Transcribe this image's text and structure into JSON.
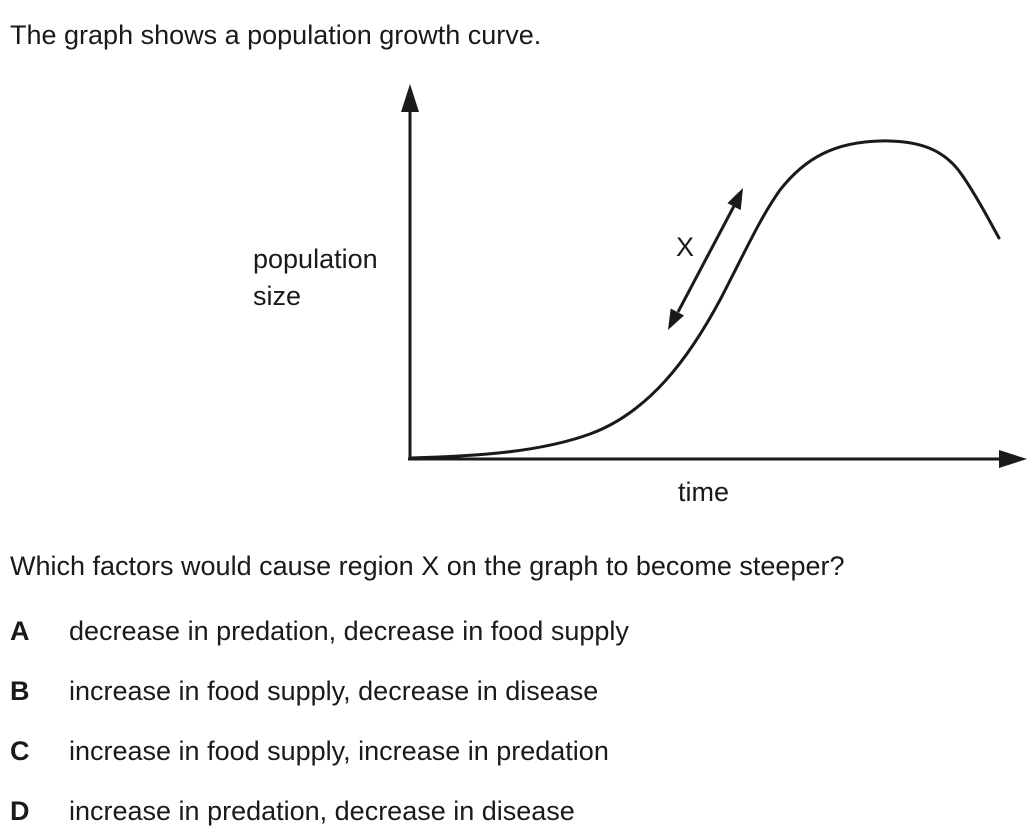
{
  "intro_text": "The graph shows a population growth curve.",
  "chart_data": {
    "type": "line",
    "title": "",
    "xlabel": "time",
    "ylabel_lines": [
      "population",
      "size"
    ],
    "region_label": "X",
    "axis_values_shown": false,
    "grid": false
  },
  "question": "Which factors would cause region X on the graph to become steeper?",
  "options": [
    {
      "letter": "A",
      "text": "decrease in predation, decrease in food supply"
    },
    {
      "letter": "B",
      "text": "increase in food supply, decrease in disease"
    },
    {
      "letter": "C",
      "text": "increase in food supply, increase in predation"
    },
    {
      "letter": "D",
      "text": "increase in predation, decrease in disease"
    }
  ]
}
